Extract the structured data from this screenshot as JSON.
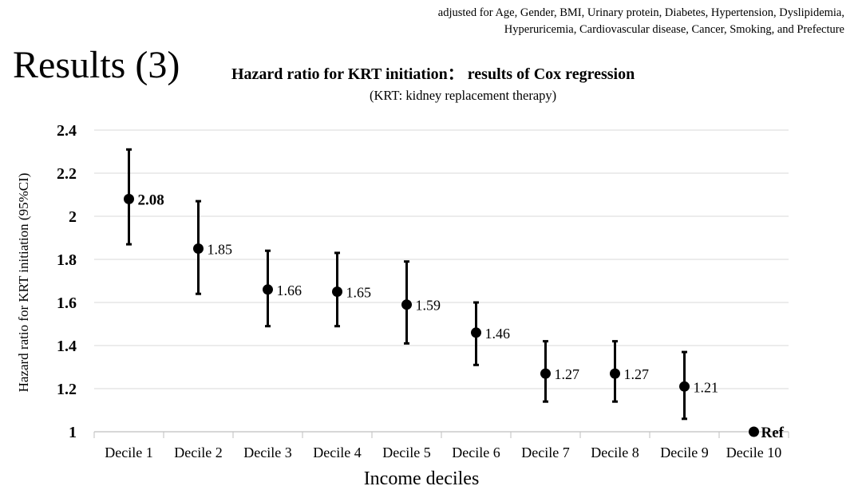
{
  "header": {
    "adjusted_line1": "adjusted for Age, Gender, BMI, Urinary protein, Diabetes, Hypertension, Dyslipidemia,",
    "adjusted_line2": "Hyperuricemia, Cardiovascular disease, Cancer, Smoking, and Prefecture",
    "slide_title": "Results (3)"
  },
  "chart_data": {
    "type": "scatter",
    "title": "Hazard ratio for KRT initiation： results of Cox regression",
    "subtitle": "(KRT: kidney replacement therapy)",
    "xlabel": "Income deciles",
    "ylabel": "Hazard ratio for KRT initiation  (95%CI)",
    "categories": [
      "Decile 1",
      "Decile 2",
      "Decile 3",
      "Decile 4",
      "Decile 5",
      "Decile 6",
      "Decile 7",
      "Decile 8",
      "Decile 9",
      "Decile 10"
    ],
    "values": [
      2.08,
      1.85,
      1.66,
      1.65,
      1.59,
      1.46,
      1.27,
      1.27,
      1.21,
      1.0
    ],
    "ci_lower": [
      1.87,
      1.64,
      1.49,
      1.49,
      1.41,
      1.31,
      1.14,
      1.14,
      1.06,
      null
    ],
    "ci_upper": [
      2.31,
      2.07,
      1.84,
      1.83,
      1.79,
      1.6,
      1.42,
      1.42,
      1.37,
      null
    ],
    "data_labels": [
      "2.08",
      "1.85",
      "1.66",
      "1.65",
      "1.59",
      "1.46",
      "1.27",
      "1.27",
      "1.21",
      "Ref"
    ],
    "bold_labels": [
      true,
      false,
      false,
      false,
      false,
      false,
      false,
      false,
      false,
      true
    ],
    "y_ticks": [
      "1",
      "1.2",
      "1.4",
      "1.6",
      "1.8",
      "2",
      "2.2",
      "2.4"
    ],
    "ylim": [
      1,
      2.4
    ],
    "grid": true,
    "legend": "none"
  }
}
